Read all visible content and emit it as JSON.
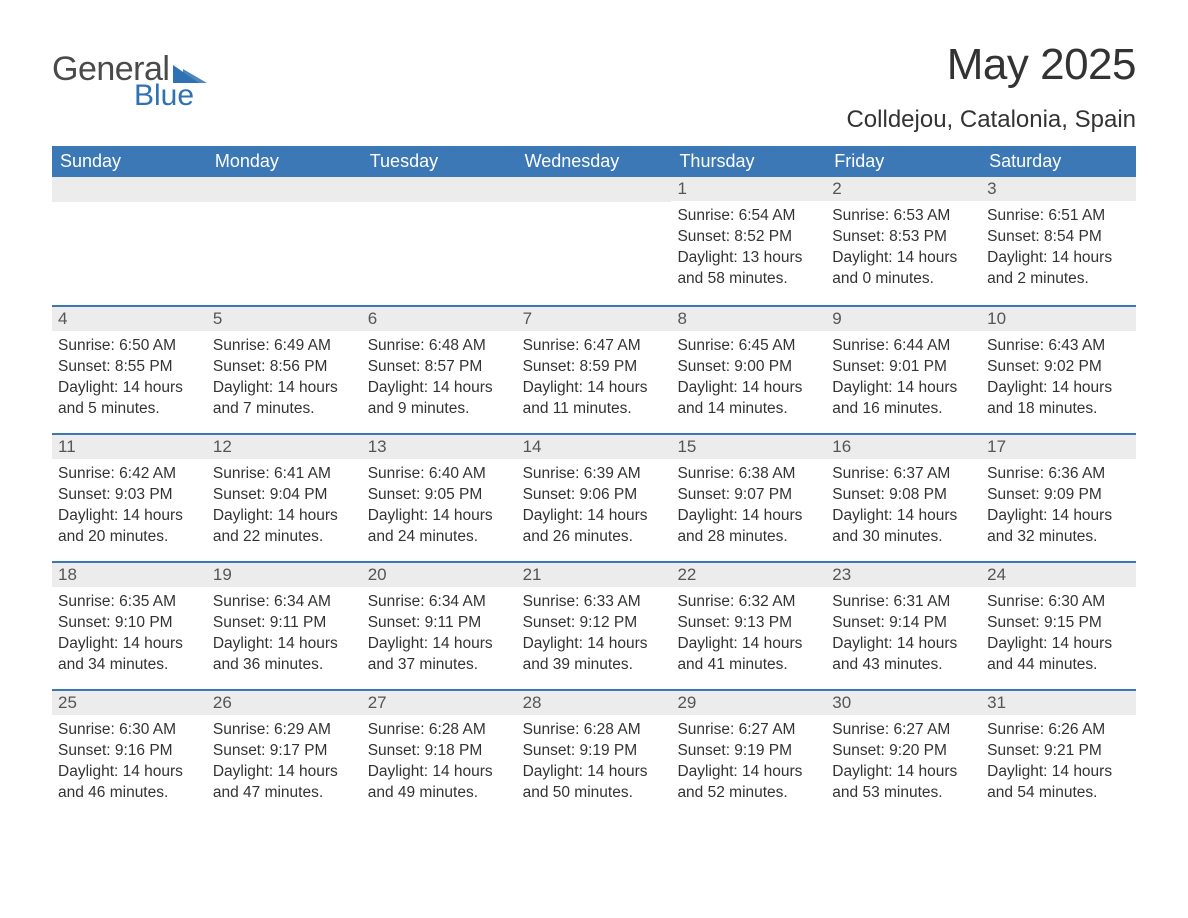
{
  "logo": {
    "text1": "General",
    "text2": "Blue",
    "triangle_color": "#2f72b3"
  },
  "title": "May 2025",
  "location": "Colldejou, Catalonia, Spain",
  "colors": {
    "header_bg": "#3b78b5",
    "header_text": "#ffffff",
    "daynum_bg": "#ececec",
    "daynum_text": "#555555",
    "body_text": "#333333",
    "rule": "#3b78b5",
    "page_bg": "#ffffff"
  },
  "typography": {
    "title_fontsize": 44,
    "location_fontsize": 24,
    "weekday_fontsize": 18,
    "daynum_fontsize": 17,
    "body_fontsize": 15.5
  },
  "weekdays": [
    "Sunday",
    "Monday",
    "Tuesday",
    "Wednesday",
    "Thursday",
    "Friday",
    "Saturday"
  ],
  "weeks": [
    [
      null,
      null,
      null,
      null,
      {
        "n": "1",
        "sunrise": "6:54 AM",
        "sunset": "8:52 PM",
        "daylight": "13 hours and 58 minutes."
      },
      {
        "n": "2",
        "sunrise": "6:53 AM",
        "sunset": "8:53 PM",
        "daylight": "14 hours and 0 minutes."
      },
      {
        "n": "3",
        "sunrise": "6:51 AM",
        "sunset": "8:54 PM",
        "daylight": "14 hours and 2 minutes."
      }
    ],
    [
      {
        "n": "4",
        "sunrise": "6:50 AM",
        "sunset": "8:55 PM",
        "daylight": "14 hours and 5 minutes."
      },
      {
        "n": "5",
        "sunrise": "6:49 AM",
        "sunset": "8:56 PM",
        "daylight": "14 hours and 7 minutes."
      },
      {
        "n": "6",
        "sunrise": "6:48 AM",
        "sunset": "8:57 PM",
        "daylight": "14 hours and 9 minutes."
      },
      {
        "n": "7",
        "sunrise": "6:47 AM",
        "sunset": "8:59 PM",
        "daylight": "14 hours and 11 minutes."
      },
      {
        "n": "8",
        "sunrise": "6:45 AM",
        "sunset": "9:00 PM",
        "daylight": "14 hours and 14 minutes."
      },
      {
        "n": "9",
        "sunrise": "6:44 AM",
        "sunset": "9:01 PM",
        "daylight": "14 hours and 16 minutes."
      },
      {
        "n": "10",
        "sunrise": "6:43 AM",
        "sunset": "9:02 PM",
        "daylight": "14 hours and 18 minutes."
      }
    ],
    [
      {
        "n": "11",
        "sunrise": "6:42 AM",
        "sunset": "9:03 PM",
        "daylight": "14 hours and 20 minutes."
      },
      {
        "n": "12",
        "sunrise": "6:41 AM",
        "sunset": "9:04 PM",
        "daylight": "14 hours and 22 minutes."
      },
      {
        "n": "13",
        "sunrise": "6:40 AM",
        "sunset": "9:05 PM",
        "daylight": "14 hours and 24 minutes."
      },
      {
        "n": "14",
        "sunrise": "6:39 AM",
        "sunset": "9:06 PM",
        "daylight": "14 hours and 26 minutes."
      },
      {
        "n": "15",
        "sunrise": "6:38 AM",
        "sunset": "9:07 PM",
        "daylight": "14 hours and 28 minutes."
      },
      {
        "n": "16",
        "sunrise": "6:37 AM",
        "sunset": "9:08 PM",
        "daylight": "14 hours and 30 minutes."
      },
      {
        "n": "17",
        "sunrise": "6:36 AM",
        "sunset": "9:09 PM",
        "daylight": "14 hours and 32 minutes."
      }
    ],
    [
      {
        "n": "18",
        "sunrise": "6:35 AM",
        "sunset": "9:10 PM",
        "daylight": "14 hours and 34 minutes."
      },
      {
        "n": "19",
        "sunrise": "6:34 AM",
        "sunset": "9:11 PM",
        "daylight": "14 hours and 36 minutes."
      },
      {
        "n": "20",
        "sunrise": "6:34 AM",
        "sunset": "9:11 PM",
        "daylight": "14 hours and 37 minutes."
      },
      {
        "n": "21",
        "sunrise": "6:33 AM",
        "sunset": "9:12 PM",
        "daylight": "14 hours and 39 minutes."
      },
      {
        "n": "22",
        "sunrise": "6:32 AM",
        "sunset": "9:13 PM",
        "daylight": "14 hours and 41 minutes."
      },
      {
        "n": "23",
        "sunrise": "6:31 AM",
        "sunset": "9:14 PM",
        "daylight": "14 hours and 43 minutes."
      },
      {
        "n": "24",
        "sunrise": "6:30 AM",
        "sunset": "9:15 PM",
        "daylight": "14 hours and 44 minutes."
      }
    ],
    [
      {
        "n": "25",
        "sunrise": "6:30 AM",
        "sunset": "9:16 PM",
        "daylight": "14 hours and 46 minutes."
      },
      {
        "n": "26",
        "sunrise": "6:29 AM",
        "sunset": "9:17 PM",
        "daylight": "14 hours and 47 minutes."
      },
      {
        "n": "27",
        "sunrise": "6:28 AM",
        "sunset": "9:18 PM",
        "daylight": "14 hours and 49 minutes."
      },
      {
        "n": "28",
        "sunrise": "6:28 AM",
        "sunset": "9:19 PM",
        "daylight": "14 hours and 50 minutes."
      },
      {
        "n": "29",
        "sunrise": "6:27 AM",
        "sunset": "9:19 PM",
        "daylight": "14 hours and 52 minutes."
      },
      {
        "n": "30",
        "sunrise": "6:27 AM",
        "sunset": "9:20 PM",
        "daylight": "14 hours and 53 minutes."
      },
      {
        "n": "31",
        "sunrise": "6:26 AM",
        "sunset": "9:21 PM",
        "daylight": "14 hours and 54 minutes."
      }
    ]
  ],
  "labels": {
    "sunrise": "Sunrise:",
    "sunset": "Sunset:",
    "daylight": "Daylight:"
  }
}
